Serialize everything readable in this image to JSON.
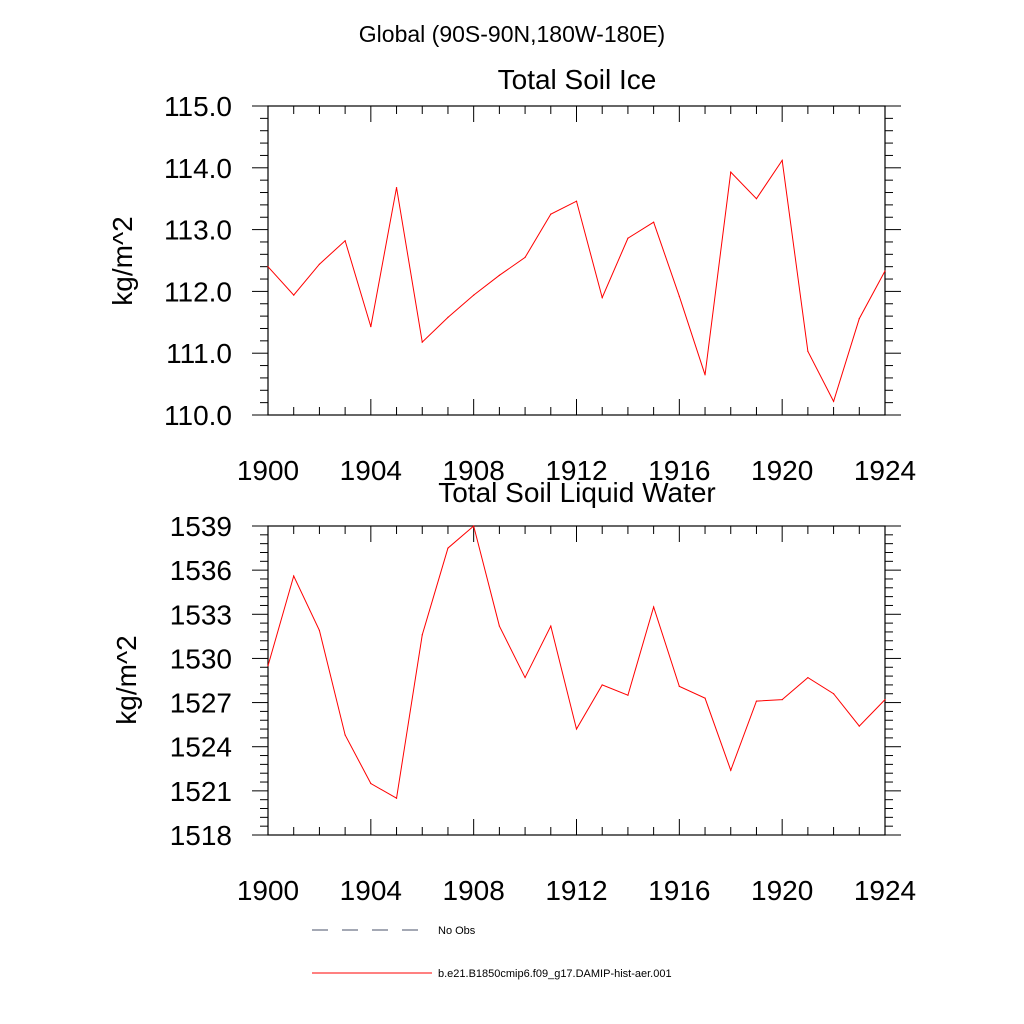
{
  "figure": {
    "header": "Global (90S-90N,180W-180E)"
  },
  "chart_data": [
    {
      "type": "line",
      "title": "Total Soil Ice",
      "ylabel": "kg/m^2",
      "xlabel": "",
      "xlim": [
        1900,
        1924
      ],
      "ylim": [
        110.0,
        115.0
      ],
      "xticks": [
        1900,
        1904,
        1908,
        1912,
        1916,
        1920,
        1924
      ],
      "xtick_labels": [
        "1900",
        "1904",
        "1908",
        "1912",
        "1916",
        "1920",
        "1924"
      ],
      "yticks": [
        110.0,
        111.0,
        112.0,
        113.0,
        114.0,
        115.0
      ],
      "ytick_labels": [
        "110.0",
        "111.0",
        "112.0",
        "113.0",
        "114.0",
        "115.0"
      ],
      "series": [
        {
          "name": "b.e21.B1850cmip6.f09_g17.DAMIP-hist-aer.001",
          "color": "#ff0000",
          "x": [
            1900,
            1901,
            1902,
            1903,
            1904,
            1905,
            1906,
            1907,
            1908,
            1909,
            1910,
            1911,
            1912,
            1913,
            1914,
            1915,
            1916,
            1917,
            1918,
            1919,
            1920,
            1921,
            1922,
            1923,
            1924
          ],
          "values": [
            112.4,
            111.94,
            112.44,
            112.82,
            111.43,
            113.68,
            111.18,
            111.58,
            111.94,
            112.26,
            112.55,
            113.25,
            113.46,
            111.9,
            112.86,
            113.12,
            111.92,
            110.65,
            113.93,
            113.5,
            114.12,
            111.03,
            110.22,
            111.56,
            112.33
          ]
        }
      ]
    },
    {
      "type": "line",
      "title": "Total Soil Liquid Water",
      "ylabel": "kg/m^2",
      "xlabel": "",
      "xlim": [
        1900,
        1924
      ],
      "ylim": [
        1518,
        1539
      ],
      "xticks": [
        1900,
        1904,
        1908,
        1912,
        1916,
        1920,
        1924
      ],
      "xtick_labels": [
        "1900",
        "1904",
        "1908",
        "1912",
        "1916",
        "1920",
        "1924"
      ],
      "yticks": [
        1518,
        1521,
        1524,
        1527,
        1530,
        1533,
        1536,
        1539
      ],
      "ytick_labels": [
        "1518",
        "1521",
        "1524",
        "1527",
        "1530",
        "1533",
        "1536",
        "1539"
      ],
      "series": [
        {
          "name": "b.e21.B1850cmip6.f09_g17.DAMIP-hist-aer.001",
          "color": "#ff0000",
          "x": [
            1900,
            1901,
            1902,
            1903,
            1904,
            1905,
            1906,
            1907,
            1908,
            1909,
            1910,
            1911,
            1912,
            1913,
            1914,
            1915,
            1916,
            1917,
            1918,
            1919,
            1920,
            1921,
            1922,
            1923,
            1924
          ],
          "values": [
            1529.5,
            1535.6,
            1531.9,
            1524.8,
            1521.5,
            1520.5,
            1531.6,
            1537.5,
            1539.0,
            1532.2,
            1528.7,
            1532.2,
            1525.2,
            1528.2,
            1527.5,
            1533.5,
            1528.1,
            1527.3,
            1522.4,
            1527.1,
            1527.2,
            1528.7,
            1527.6,
            1525.4,
            1527.2
          ]
        }
      ]
    }
  ],
  "legend": {
    "items": [
      {
        "label": "No Obs",
        "style": "dashed",
        "color": "#4a5068"
      },
      {
        "label": "b.e21.B1850cmip6.f09_g17.DAMIP-hist-aer.001",
        "style": "solid",
        "color": "#ff0000"
      }
    ]
  }
}
